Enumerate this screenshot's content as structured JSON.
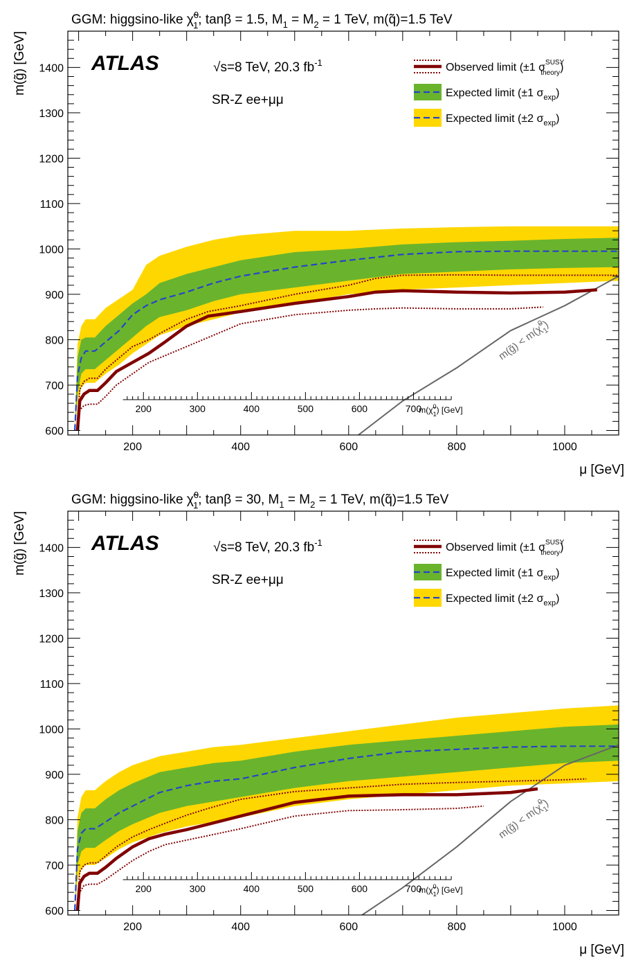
{
  "chart_data": [
    {
      "type": "line",
      "title": "GGM: higgsino-like χ̃1⁰; tanβ = 1.5, M1 = M2 = 1 TeV, m(q̃)=1.5 TeV",
      "title_parts": {
        "a": "GGM: higgsino-like ",
        "chi": "χ",
        "sup": "0",
        "sub": "1",
        "b": "; tanβ = 1.5, M",
        "s1": "1",
        "c": " = M",
        "s2": "2",
        "d": " = 1 TeV, m(q̃)=1.5 TeV"
      },
      "xlabel": "μ [GeV]",
      "ylabel": "m(g̃) [GeV]",
      "xlim": [
        80,
        1100
      ],
      "ylim": [
        590,
        1480
      ],
      "x_ticks": [
        200,
        400,
        600,
        800,
        1000
      ],
      "y_ticks": [
        600,
        700,
        800,
        900,
        1000,
        1100,
        1200,
        1300,
        1400
      ],
      "top_axis_ticks": [
        200,
        300,
        400,
        500,
        600,
        700
      ],
      "top_axis_label": "m(χ̃1⁰) [GeV]",
      "atlas_label": "ATLAS",
      "energy_label": "√s=8 TeV, 20.3 fb⁻¹",
      "energy_parts": {
        "a": "s=8 TeV, 20.3 fb",
        "sup": "-1"
      },
      "region_label": "SR-Z ee+μμ",
      "kinematic_label": "m(g̃) < m(χ̃1⁰)",
      "legend": [
        {
          "label": "Observed limit (±1 σ theory SUSY)",
          "main": "Observed limit (±1 σ",
          "sup": "SUSY",
          "sub": "theory",
          "end": ")",
          "color": "#800000"
        },
        {
          "label": "Expected limit (±1 σexp)",
          "main": "Expected limit (±1 σ",
          "sub": "exp",
          "end": ")",
          "color": "#6ab42d"
        },
        {
          "label": "Expected limit (±2 σexp)",
          "main": "Expected limit (±2 σ",
          "sub": "exp",
          "end": ")",
          "color": "#ffd700"
        }
      ],
      "grid": false,
      "colors": {
        "band2": "#ffd700",
        "band1": "#6ab42d",
        "expected": "#2244cc",
        "observed": "#800000",
        "kinematic": "#666666"
      },
      "series": [
        {
          "name": "Expected limit",
          "x": [
            93,
            98,
            105,
            113,
            130,
            150,
            175,
            200,
            225,
            250,
            300,
            350,
            400,
            500,
            600,
            700,
            800,
            900,
            1000,
            1100
          ],
          "values": [
            600,
            720,
            760,
            775,
            775,
            795,
            820,
            855,
            875,
            888,
            905,
            925,
            940,
            960,
            975,
            988,
            994,
            995,
            995,
            995
          ]
        },
        {
          "name": "Expected +1σ",
          "x": [
            93,
            98,
            105,
            113,
            130,
            150,
            175,
            200,
            225,
            250,
            300,
            350,
            400,
            500,
            600,
            700,
            800,
            900,
            1000,
            1100
          ],
          "values": [
            600,
            760,
            800,
            805,
            805,
            830,
            855,
            880,
            900,
            925,
            945,
            960,
            975,
            993,
            1000,
            1010,
            1015,
            1018,
            1022,
            1025
          ]
        },
        {
          "name": "Expected -1σ",
          "x": [
            93,
            98,
            105,
            113,
            130,
            150,
            175,
            200,
            225,
            250,
            300,
            350,
            400,
            500,
            600,
            700,
            800,
            900,
            1000,
            1100
          ],
          "values": [
            600,
            680,
            725,
            735,
            735,
            755,
            780,
            805,
            830,
            850,
            865,
            885,
            900,
            915,
            930,
            945,
            950,
            955,
            958,
            960
          ]
        },
        {
          "name": "Expected +2σ",
          "x": [
            93,
            98,
            105,
            113,
            130,
            150,
            175,
            200,
            225,
            250,
            300,
            350,
            400,
            500,
            600,
            700,
            800,
            900,
            1000,
            1100
          ],
          "values": [
            600,
            790,
            830,
            845,
            845,
            870,
            890,
            910,
            965,
            985,
            1005,
            1020,
            1030,
            1040,
            1040,
            1045,
            1048,
            1050,
            1050,
            1050
          ]
        },
        {
          "name": "Expected -2σ",
          "x": [
            93,
            98,
            105,
            113,
            130,
            150,
            175,
            200,
            225,
            250,
            300,
            350,
            400,
            500,
            600,
            700,
            800,
            900,
            1000,
            1100
          ],
          "values": [
            600,
            660,
            695,
            705,
            705,
            725,
            745,
            770,
            790,
            810,
            830,
            845,
            860,
            880,
            900,
            910,
            915,
            920,
            925,
            930
          ]
        },
        {
          "name": "Observed limit",
          "x": [
            98,
            102,
            110,
            120,
            135,
            150,
            170,
            200,
            230,
            260,
            300,
            340,
            400,
            500,
            600,
            650,
            700,
            800,
            900,
            1000,
            1060
          ],
          "values": [
            600,
            665,
            680,
            688,
            688,
            705,
            730,
            750,
            770,
            795,
            830,
            852,
            862,
            880,
            895,
            905,
            908,
            905,
            903,
            905,
            910
          ]
        },
        {
          "name": "Observed +1σ theory",
          "x": [
            98,
            102,
            110,
            120,
            135,
            150,
            170,
            200,
            230,
            260,
            300,
            340,
            400,
            500,
            600,
            650,
            700,
            800,
            900,
            1000,
            1100
          ],
          "values": [
            600,
            690,
            708,
            715,
            715,
            735,
            755,
            785,
            800,
            820,
            845,
            862,
            875,
            900,
            920,
            935,
            942,
            943,
            942,
            942,
            942
          ]
        },
        {
          "name": "Observed -1σ theory",
          "x": [
            98,
            102,
            110,
            120,
            135,
            150,
            170,
            200,
            230,
            260,
            300,
            340,
            400,
            500,
            600,
            650,
            700,
            800,
            900,
            960
          ],
          "values": [
            600,
            645,
            655,
            658,
            658,
            675,
            700,
            725,
            750,
            765,
            785,
            805,
            835,
            855,
            865,
            868,
            870,
            868,
            868,
            872
          ]
        },
        {
          "name": "Kinematic limit",
          "x": [
            618,
            700,
            800,
            900,
            1000,
            1100
          ],
          "values": [
            590,
            665,
            738,
            820,
            875,
            940
          ]
        }
      ]
    },
    {
      "type": "line",
      "title": "GGM: higgsino-like χ̃1⁰; tanβ = 30, M1 = M2 = 1 TeV, m(q̃)=1.5 TeV",
      "title_parts": {
        "a": "GGM: higgsino-like ",
        "chi": "χ",
        "sup": "0",
        "sub": "1",
        "b": "; tanβ = 30, M",
        "s1": "1",
        "c": " = M",
        "s2": "2",
        "d": " = 1 TeV, m(q̃)=1.5 TeV"
      },
      "xlabel": "μ [GeV]",
      "ylabel": "m(g̃) [GeV]",
      "xlim": [
        80,
        1100
      ],
      "ylim": [
        590,
        1480
      ],
      "x_ticks": [
        200,
        400,
        600,
        800,
        1000
      ],
      "y_ticks": [
        600,
        700,
        800,
        900,
        1000,
        1100,
        1200,
        1300,
        1400
      ],
      "top_axis_ticks": [
        200,
        300,
        400,
        500,
        600,
        700
      ],
      "top_axis_label": "m(χ̃1⁰) [GeV]",
      "atlas_label": "ATLAS",
      "energy_label": "√s=8 TeV, 20.3 fb⁻¹",
      "energy_parts": {
        "a": "s=8 TeV, 20.3 fb",
        "sup": "-1"
      },
      "region_label": "SR-Z ee+μμ",
      "kinematic_label": "m(g̃) < m(χ̃1⁰)",
      "legend": [
        {
          "label": "Observed limit (±1 σ theory SUSY)",
          "main": "Observed limit (±1 σ",
          "sup": "SUSY",
          "sub": "theory",
          "end": ")",
          "color": "#800000"
        },
        {
          "label": "Expected limit (±1 σexp)",
          "main": "Expected limit (±1 σ",
          "sub": "exp",
          "end": ")",
          "color": "#6ab42d"
        },
        {
          "label": "Expected limit (±2 σexp)",
          "main": "Expected limit (±2 σ",
          "sub": "exp",
          "end": ")",
          "color": "#ffd700"
        }
      ],
      "grid": false,
      "colors": {
        "band2": "#ffd700",
        "band1": "#6ab42d",
        "expected": "#2244cc",
        "observed": "#800000",
        "kinematic": "#666666"
      },
      "series": [
        {
          "name": "Expected limit",
          "x": [
            93,
            98,
            105,
            113,
            130,
            150,
            175,
            200,
            250,
            300,
            350,
            400,
            500,
            600,
            700,
            800,
            900,
            1000,
            1100
          ],
          "values": [
            600,
            735,
            770,
            780,
            780,
            795,
            815,
            830,
            860,
            875,
            885,
            890,
            915,
            935,
            950,
            955,
            960,
            962,
            962
          ]
        },
        {
          "name": "Expected +1σ",
          "x": [
            93,
            98,
            105,
            113,
            130,
            150,
            175,
            200,
            250,
            300,
            350,
            400,
            500,
            600,
            700,
            800,
            900,
            1000,
            1100
          ],
          "values": [
            600,
            775,
            815,
            825,
            825,
            845,
            865,
            880,
            905,
            915,
            925,
            930,
            950,
            965,
            975,
            985,
            995,
            1005,
            1010
          ]
        },
        {
          "name": "Expected -1σ",
          "x": [
            93,
            98,
            105,
            113,
            130,
            150,
            175,
            200,
            250,
            300,
            350,
            400,
            500,
            600,
            700,
            800,
            900,
            1000,
            1100
          ],
          "values": [
            600,
            700,
            730,
            738,
            738,
            755,
            775,
            790,
            815,
            830,
            840,
            850,
            870,
            885,
            895,
            905,
            915,
            925,
            930
          ]
        },
        {
          "name": "Expected +2σ",
          "x": [
            93,
            98,
            105,
            113,
            130,
            150,
            175,
            200,
            250,
            300,
            350,
            400,
            500,
            600,
            700,
            800,
            900,
            1000,
            1100
          ],
          "values": [
            600,
            805,
            850,
            865,
            865,
            885,
            905,
            920,
            940,
            950,
            960,
            965,
            980,
            995,
            1010,
            1025,
            1035,
            1045,
            1052
          ]
        },
        {
          "name": "Expected -2σ",
          "x": [
            93,
            98,
            105,
            113,
            130,
            150,
            175,
            200,
            250,
            300,
            350,
            400,
            500,
            600,
            700,
            800,
            900,
            1000,
            1100
          ],
          "values": [
            600,
            665,
            690,
            700,
            700,
            715,
            735,
            750,
            770,
            785,
            795,
            805,
            830,
            845,
            855,
            865,
            875,
            880,
            885
          ]
        },
        {
          "name": "Observed limit",
          "x": [
            98,
            102,
            110,
            120,
            135,
            150,
            170,
            200,
            230,
            260,
            300,
            340,
            400,
            500,
            600,
            700,
            800,
            900,
            950
          ],
          "values": [
            600,
            660,
            675,
            682,
            682,
            695,
            715,
            740,
            758,
            768,
            778,
            790,
            808,
            838,
            852,
            855,
            855,
            860,
            868
          ]
        },
        {
          "name": "Observed +1σ theory",
          "x": [
            98,
            102,
            110,
            120,
            135,
            150,
            170,
            200,
            230,
            260,
            300,
            340,
            400,
            500,
            600,
            700,
            800,
            900,
            1000,
            1040
          ],
          "values": [
            600,
            685,
            700,
            705,
            705,
            720,
            740,
            762,
            778,
            792,
            810,
            825,
            845,
            862,
            870,
            878,
            882,
            885,
            888,
            890
          ]
        },
        {
          "name": "Observed -1σ theory",
          "x": [
            98,
            102,
            110,
            120,
            135,
            150,
            170,
            200,
            230,
            260,
            300,
            340,
            400,
            500,
            600,
            700,
            800,
            850
          ],
          "values": [
            600,
            640,
            655,
            658,
            658,
            668,
            685,
            710,
            730,
            745,
            755,
            765,
            780,
            808,
            820,
            822,
            825,
            830
          ]
        },
        {
          "name": "Kinematic limit",
          "x": [
            625,
            700,
            800,
            900,
            1000,
            1100
          ],
          "values": [
            590,
            650,
            740,
            840,
            920,
            965
          ]
        }
      ]
    }
  ]
}
